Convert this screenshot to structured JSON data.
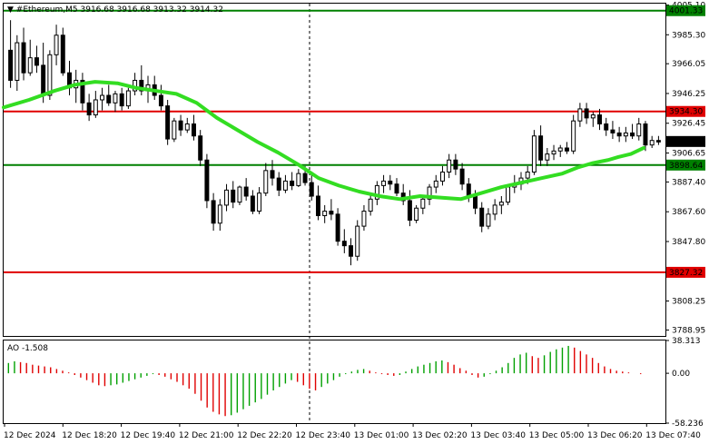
{
  "chart_data": {
    "type": "candlestick",
    "header": "▼ #Ethereum,M5  3916.68 3916.68 3913.32 3914.32",
    "y_axis": {
      "range": [
        3785,
        4006
      ],
      "ticks": [
        "4005.10",
        "3985.30",
        "3966.05",
        "3946.25",
        "3926.45",
        "3906.65",
        "3887.40",
        "3867.60",
        "3847.80",
        "3808.25",
        "3788.95"
      ]
    },
    "price_levels": [
      {
        "value": 4001.33,
        "label": "4001.33",
        "color": "#008000"
      },
      {
        "value": 3934.3,
        "label": "3934.30",
        "color": "#e00000"
      },
      {
        "value": 3898.64,
        "label": "3898.64",
        "color": "#008000"
      },
      {
        "value": 3827.32,
        "label": "3827.32",
        "color": "#e00000"
      }
    ],
    "current_price": {
      "value": 3914.32,
      "label": "3914.32",
      "color": "#000000"
    },
    "moving_average": {
      "color": "#33dd22",
      "points": [
        [
          0,
          3937
        ],
        [
          10,
          3942
        ],
        [
          20,
          3948
        ],
        [
          28,
          3952
        ],
        [
          36,
          3954
        ],
        [
          45,
          3953
        ],
        [
          52,
          3950
        ],
        [
          60,
          3948
        ],
        [
          68,
          3946
        ],
        [
          76,
          3940
        ],
        [
          84,
          3930
        ],
        [
          92,
          3922
        ],
        [
          100,
          3914
        ],
        [
          108,
          3907
        ],
        [
          116,
          3899
        ],
        [
          124,
          3890
        ],
        [
          132,
          3885
        ],
        [
          140,
          3881
        ],
        [
          148,
          3878
        ],
        [
          156,
          3876
        ],
        [
          164,
          3878
        ],
        [
          172,
          3877
        ],
        [
          180,
          3876
        ],
        [
          188,
          3880
        ],
        [
          196,
          3884
        ],
        [
          204,
          3887
        ],
        [
          212,
          3890
        ],
        [
          220,
          3893
        ],
        [
          226,
          3897
        ],
        [
          232,
          3900
        ],
        [
          238,
          3902
        ],
        [
          242,
          3904
        ],
        [
          247,
          3906
        ],
        [
          252,
          3910
        ]
      ]
    },
    "candles": [
      {
        "o": 3975,
        "h": 3995,
        "l": 3950,
        "c": 3955
      },
      {
        "o": 3955,
        "h": 3985,
        "l": 3948,
        "c": 3980
      },
      {
        "o": 3980,
        "h": 3990,
        "l": 3955,
        "c": 3960
      },
      {
        "o": 3960,
        "h": 3982,
        "l": 3958,
        "c": 3970
      },
      {
        "o": 3970,
        "h": 3978,
        "l": 3960,
        "c": 3965
      },
      {
        "o": 3965,
        "h": 3980,
        "l": 3940,
        "c": 3945
      },
      {
        "o": 3945,
        "h": 3975,
        "l": 3942,
        "c": 3972
      },
      {
        "o": 3972,
        "h": 3992,
        "l": 3965,
        "c": 3985
      },
      {
        "o": 3985,
        "h": 3990,
        "l": 3958,
        "c": 3960
      },
      {
        "o": 3960,
        "h": 3968,
        "l": 3945,
        "c": 3950
      },
      {
        "o": 3950,
        "h": 3962,
        "l": 3940,
        "c": 3955
      },
      {
        "o": 3955,
        "h": 3960,
        "l": 3935,
        "c": 3940
      },
      {
        "o": 3940,
        "h": 3946,
        "l": 3928,
        "c": 3932
      },
      {
        "o": 3932,
        "h": 3948,
        "l": 3930,
        "c": 3942
      },
      {
        "o": 3942,
        "h": 3950,
        "l": 3935,
        "c": 3945
      },
      {
        "o": 3945,
        "h": 3952,
        "l": 3938,
        "c": 3940
      },
      {
        "o": 3940,
        "h": 3948,
        "l": 3934,
        "c": 3946
      },
      {
        "o": 3946,
        "h": 3950,
        "l": 3935,
        "c": 3938
      },
      {
        "o": 3938,
        "h": 3950,
        "l": 3936,
        "c": 3948
      },
      {
        "o": 3948,
        "h": 3960,
        "l": 3945,
        "c": 3955
      },
      {
        "o": 3955,
        "h": 3965,
        "l": 3945,
        "c": 3948
      },
      {
        "o": 3948,
        "h": 3958,
        "l": 3940,
        "c": 3952
      },
      {
        "o": 3952,
        "h": 3958,
        "l": 3942,
        "c": 3945
      },
      {
        "o": 3945,
        "h": 3952,
        "l": 3935,
        "c": 3938
      },
      {
        "o": 3938,
        "h": 3942,
        "l": 3912,
        "c": 3916
      },
      {
        "o": 3916,
        "h": 3930,
        "l": 3914,
        "c": 3928
      },
      {
        "o": 3928,
        "h": 3932,
        "l": 3918,
        "c": 3922
      },
      {
        "o": 3922,
        "h": 3930,
        "l": 3920,
        "c": 3926
      },
      {
        "o": 3926,
        "h": 3932,
        "l": 3915,
        "c": 3918
      },
      {
        "o": 3918,
        "h": 3922,
        "l": 3898,
        "c": 3902
      },
      {
        "o": 3902,
        "h": 3906,
        "l": 3870,
        "c": 3875
      },
      {
        "o": 3875,
        "h": 3880,
        "l": 3855,
        "c": 3860
      },
      {
        "o": 3860,
        "h": 3876,
        "l": 3855,
        "c": 3872
      },
      {
        "o": 3872,
        "h": 3886,
        "l": 3868,
        "c": 3882
      },
      {
        "o": 3882,
        "h": 3888,
        "l": 3870,
        "c": 3874
      },
      {
        "o": 3874,
        "h": 3885,
        "l": 3872,
        "c": 3884
      },
      {
        "o": 3884,
        "h": 3890,
        "l": 3875,
        "c": 3878
      },
      {
        "o": 3878,
        "h": 3882,
        "l": 3866,
        "c": 3868
      },
      {
        "o": 3868,
        "h": 3884,
        "l": 3866,
        "c": 3880
      },
      {
        "o": 3880,
        "h": 3900,
        "l": 3878,
        "c": 3895
      },
      {
        "o": 3895,
        "h": 3902,
        "l": 3885,
        "c": 3890
      },
      {
        "o": 3890,
        "h": 3894,
        "l": 3878,
        "c": 3882
      },
      {
        "o": 3882,
        "h": 3892,
        "l": 3880,
        "c": 3888
      },
      {
        "o": 3888,
        "h": 3894,
        "l": 3882,
        "c": 3885
      },
      {
        "o": 3885,
        "h": 3896,
        "l": 3884,
        "c": 3893
      },
      {
        "o": 3893,
        "h": 3898,
        "l": 3885,
        "c": 3887
      },
      {
        "o": 3887,
        "h": 3892,
        "l": 3875,
        "c": 3878
      },
      {
        "o": 3878,
        "h": 3885,
        "l": 3862,
        "c": 3865
      },
      {
        "o": 3865,
        "h": 3872,
        "l": 3860,
        "c": 3868
      },
      {
        "o": 3868,
        "h": 3876,
        "l": 3862,
        "c": 3866
      },
      {
        "o": 3866,
        "h": 3870,
        "l": 3845,
        "c": 3848
      },
      {
        "o": 3848,
        "h": 3856,
        "l": 3840,
        "c": 3845
      },
      {
        "o": 3845,
        "h": 3850,
        "l": 3832,
        "c": 3838
      },
      {
        "o": 3838,
        "h": 3862,
        "l": 3835,
        "c": 3858
      },
      {
        "o": 3858,
        "h": 3872,
        "l": 3855,
        "c": 3868
      },
      {
        "o": 3868,
        "h": 3880,
        "l": 3865,
        "c": 3876
      },
      {
        "o": 3876,
        "h": 3888,
        "l": 3872,
        "c": 3885
      },
      {
        "o": 3885,
        "h": 3892,
        "l": 3880,
        "c": 3888
      },
      {
        "o": 3888,
        "h": 3892,
        "l": 3882,
        "c": 3886
      },
      {
        "o": 3886,
        "h": 3890,
        "l": 3878,
        "c": 3880
      },
      {
        "o": 3880,
        "h": 3886,
        "l": 3872,
        "c": 3875
      },
      {
        "o": 3875,
        "h": 3882,
        "l": 3858,
        "c": 3862
      },
      {
        "o": 3862,
        "h": 3872,
        "l": 3860,
        "c": 3870
      },
      {
        "o": 3870,
        "h": 3878,
        "l": 3866,
        "c": 3876
      },
      {
        "o": 3876,
        "h": 3886,
        "l": 3872,
        "c": 3884
      },
      {
        "o": 3884,
        "h": 3892,
        "l": 3880,
        "c": 3888
      },
      {
        "o": 3888,
        "h": 3898,
        "l": 3885,
        "c": 3894
      },
      {
        "o": 3894,
        "h": 3906,
        "l": 3890,
        "c": 3902
      },
      {
        "o": 3902,
        "h": 3906,
        "l": 3892,
        "c": 3896
      },
      {
        "o": 3896,
        "h": 3900,
        "l": 3882,
        "c": 3886
      },
      {
        "o": 3886,
        "h": 3890,
        "l": 3874,
        "c": 3878
      },
      {
        "o": 3878,
        "h": 3882,
        "l": 3866,
        "c": 3870
      },
      {
        "o": 3870,
        "h": 3874,
        "l": 3854,
        "c": 3858
      },
      {
        "o": 3858,
        "h": 3870,
        "l": 3856,
        "c": 3866
      },
      {
        "o": 3866,
        "h": 3876,
        "l": 3862,
        "c": 3872
      },
      {
        "o": 3872,
        "h": 3878,
        "l": 3866,
        "c": 3874
      },
      {
        "o": 3874,
        "h": 3886,
        "l": 3872,
        "c": 3884
      },
      {
        "o": 3884,
        "h": 3892,
        "l": 3880,
        "c": 3886
      },
      {
        "o": 3886,
        "h": 3894,
        "l": 3882,
        "c": 3890
      },
      {
        "o": 3890,
        "h": 3898,
        "l": 3886,
        "c": 3894
      },
      {
        "o": 3894,
        "h": 3922,
        "l": 3892,
        "c": 3918
      },
      {
        "o": 3918,
        "h": 3925,
        "l": 3898,
        "c": 3902
      },
      {
        "o": 3902,
        "h": 3910,
        "l": 3898,
        "c": 3906
      },
      {
        "o": 3906,
        "h": 3912,
        "l": 3902,
        "c": 3908
      },
      {
        "o": 3908,
        "h": 3912,
        "l": 3904,
        "c": 3910
      },
      {
        "o": 3910,
        "h": 3914,
        "l": 3906,
        "c": 3908
      },
      {
        "o": 3908,
        "h": 3932,
        "l": 3906,
        "c": 3928
      },
      {
        "o": 3928,
        "h": 3940,
        "l": 3924,
        "c": 3936
      },
      {
        "o": 3936,
        "h": 3940,
        "l": 3926,
        "c": 3930
      },
      {
        "o": 3930,
        "h": 3934,
        "l": 3924,
        "c": 3932
      },
      {
        "o": 3932,
        "h": 3936,
        "l": 3922,
        "c": 3926
      },
      {
        "o": 3926,
        "h": 3930,
        "l": 3918,
        "c": 3922
      },
      {
        "o": 3922,
        "h": 3928,
        "l": 3916,
        "c": 3920
      },
      {
        "o": 3920,
        "h": 3924,
        "l": 3914,
        "c": 3918
      },
      {
        "o": 3918,
        "h": 3924,
        "l": 3914,
        "c": 3920
      },
      {
        "o": 3920,
        "h": 3926,
        "l": 3916,
        "c": 3918
      },
      {
        "o": 3918,
        "h": 3930,
        "l": 3915,
        "c": 3926
      },
      {
        "o": 3926,
        "h": 3928,
        "l": 3908,
        "c": 3912
      },
      {
        "o": 3912,
        "h": 3918,
        "l": 3910,
        "c": 3915
      },
      {
        "o": 3915,
        "h": 3918,
        "l": 3912,
        "c": 3914
      }
    ],
    "ao": {
      "label": "AO -1.508",
      "up_color": "#00a000",
      "down_color": "#e00000",
      "ticks": [
        "38.313",
        "0.00",
        "-58.236"
      ],
      "range": [
        -58.236,
        38.313
      ],
      "values": [
        12,
        14,
        13,
        12,
        10,
        9,
        8,
        7,
        5,
        3,
        1,
        -2,
        -5,
        -8,
        -11,
        -14,
        -15,
        -14,
        -13,
        -11,
        -9,
        -7,
        -5,
        -3,
        -1,
        -2,
        -4,
        -7,
        -10,
        -14,
        -18,
        -24,
        -32,
        -40,
        -45,
        -48,
        -50,
        -49,
        -46,
        -42,
        -38,
        -34,
        -30,
        -25,
        -20,
        -16,
        -12,
        -8,
        -10,
        -14,
        -18,
        -20,
        -16,
        -12,
        -8,
        -4,
        -1,
        2,
        4,
        5,
        3,
        1,
        -1,
        -2,
        -3,
        -2,
        2,
        5,
        8,
        10,
        12,
        14,
        15,
        13,
        10,
        6,
        3,
        -2,
        -5,
        -4,
        -1,
        3,
        7,
        12,
        18,
        22,
        24,
        20,
        18,
        21,
        25,
        28,
        30,
        32,
        30,
        26,
        22,
        18,
        12,
        8,
        5,
        3,
        2,
        1,
        0,
        -1
      ]
    },
    "x_ticks": [
      "12 Dec 2024",
      "12 Dec 18:20",
      "12 Dec 19:40",
      "12 Dec 21:00",
      "12 Dec 22:20",
      "12 Dec 23:40",
      "13 Dec 01:00",
      "13 Dec 02:20",
      "13 Dec 03:40",
      "13 Dec 05:00",
      "13 Dec 06:20",
      "13 Dec 07:40"
    ]
  }
}
